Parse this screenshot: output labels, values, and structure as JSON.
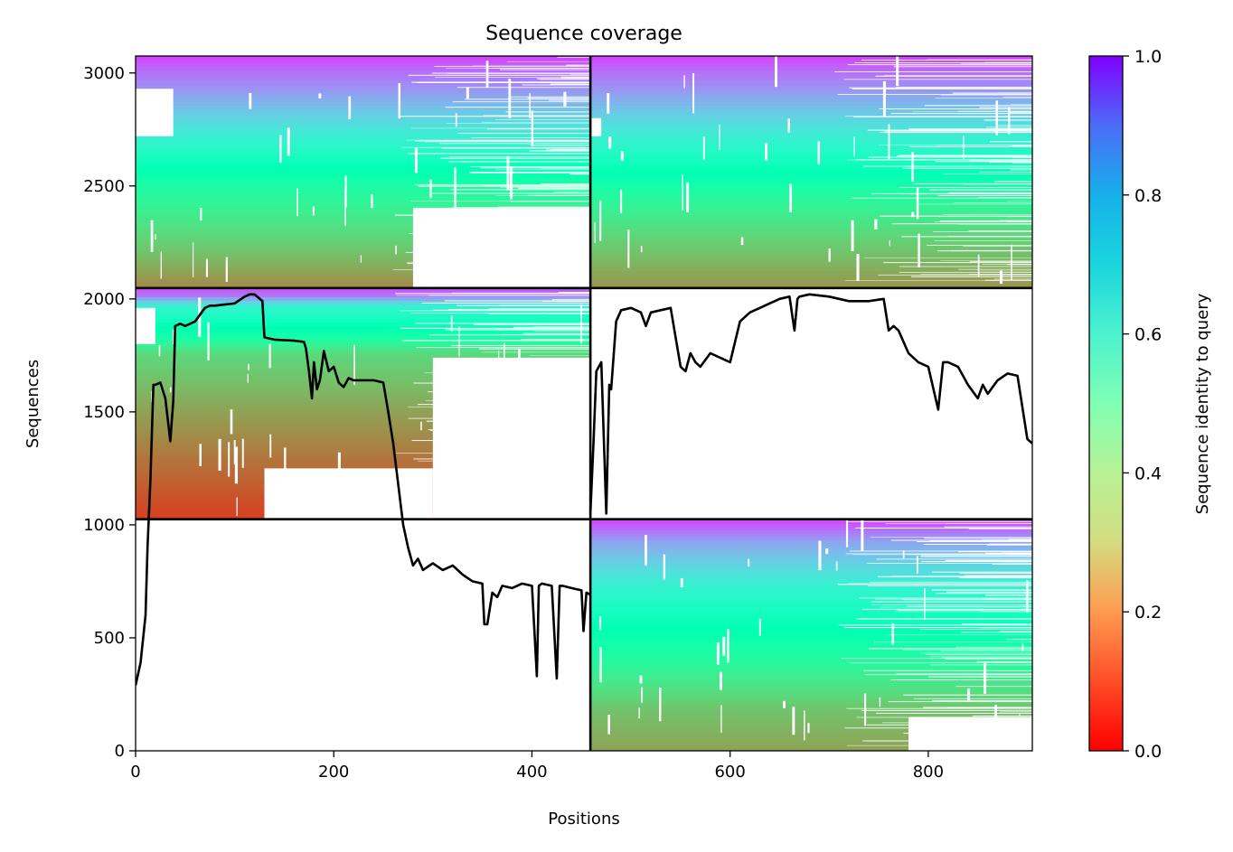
{
  "chart_data": {
    "type": "heatmap",
    "title": "Sequence coverage",
    "xlabel": "Positions",
    "ylabel": "Sequences",
    "xlim": [
      0,
      905
    ],
    "ylim": [
      0,
      3075
    ],
    "x_ticks": [
      0,
      200,
      400,
      600,
      800
    ],
    "y_ticks": [
      0,
      500,
      1000,
      1500,
      2000,
      2500,
      3000
    ],
    "grid": false,
    "colorbar": {
      "label": "Sequence identity to query",
      "range": [
        0,
        1
      ],
      "ticks": [
        "0.0",
        "0.2",
        "0.4",
        "0.6",
        "0.8",
        "1.0"
      ],
      "colormap": "rainbow_r"
    },
    "block_boundaries": {
      "x": [
        459
      ],
      "y": [
        1025,
        2048
      ]
    },
    "blocks": [
      {
        "chain": "row3-col1",
        "x": [
          0,
          459
        ],
        "y": [
          2048,
          3075
        ],
        "bands": [
          [
            2048,
            0.18
          ],
          [
            2240,
            0.3
          ],
          [
            2500,
            0.45
          ],
          [
            2720,
            0.62
          ],
          [
            2920,
            0.8
          ],
          [
            3030,
            0.88
          ]
        ]
      },
      {
        "chain": "row3-col2",
        "x": [
          459,
          905
        ],
        "y": [
          2048,
          3075
        ],
        "bands": [
          [
            2048,
            0.2
          ],
          [
            2250,
            0.3
          ],
          [
            2480,
            0.45
          ],
          [
            2720,
            0.62
          ],
          [
            2920,
            0.8
          ],
          [
            3030,
            0.88
          ]
        ]
      },
      {
        "chain": "row2-col1",
        "x": [
          0,
          459
        ],
        "y": [
          1025,
          2048
        ],
        "bands": [
          [
            1025,
            0.08
          ],
          [
            1280,
            0.15
          ],
          [
            1500,
            0.22
          ],
          [
            1750,
            0.32
          ],
          [
            1820,
            0.45
          ],
          [
            1960,
            0.6
          ],
          [
            2010,
            0.85
          ]
        ]
      },
      {
        "chain": "row1-col2",
        "x": [
          459,
          905
        ],
        "y": [
          0,
          1025
        ],
        "bands": [
          [
            0,
            0.22
          ],
          [
            180,
            0.28
          ],
          [
            380,
            0.42
          ],
          [
            720,
            0.6
          ],
          [
            920,
            0.78
          ],
          [
            990,
            0.88
          ]
        ]
      }
    ],
    "series": [
      {
        "type": "line",
        "color": "#000000",
        "x": [
          0,
          5,
          10,
          12,
          15,
          18,
          20,
          25,
          30,
          35,
          38,
          40,
          45,
          50,
          60,
          70,
          75,
          80,
          90,
          100,
          110,
          115,
          120,
          128,
          130,
          140,
          160,
          170,
          172,
          175,
          178,
          180,
          183,
          186,
          190,
          195,
          200,
          205,
          210,
          215,
          220,
          230,
          240,
          250,
          255,
          260,
          265,
          270,
          275,
          280,
          285,
          290,
          300,
          310,
          320,
          330,
          340,
          350,
          352,
          355,
          360,
          365,
          370,
          380,
          390,
          400,
          405,
          407,
          410,
          420,
          425,
          428,
          431,
          440,
          450,
          452,
          455,
          459
        ],
        "y": [
          290,
          390,
          600,
          900,
          1200,
          1620,
          1620,
          1630,
          1560,
          1370,
          1550,
          1880,
          1890,
          1880,
          1900,
          1960,
          1970,
          1970,
          1975,
          1980,
          2010,
          2020,
          2020,
          1990,
          1830,
          1820,
          1815,
          1810,
          1780,
          1680,
          1560,
          1720,
          1600,
          1640,
          1770,
          1680,
          1700,
          1630,
          1610,
          1650,
          1640,
          1640,
          1640,
          1630,
          1500,
          1360,
          1180,
          1000,
          900,
          820,
          850,
          800,
          830,
          800,
          820,
          780,
          750,
          740,
          560,
          560,
          700,
          680,
          730,
          720,
          740,
          730,
          330,
          730,
          740,
          730,
          320,
          730,
          730,
          720,
          710,
          530,
          700,
          690
        ]
      },
      {
        "type": "line",
        "color": "#000000",
        "x": [
          459,
          462,
          465,
          470,
          475,
          478,
          480,
          485,
          490,
          500,
          510,
          515,
          520,
          530,
          540,
          550,
          555,
          560,
          565,
          570,
          580,
          590,
          600,
          610,
          620,
          630,
          640,
          650,
          660,
          665,
          668,
          670,
          680,
          700,
          720,
          740,
          755,
          760,
          765,
          770,
          780,
          790,
          800,
          810,
          815,
          820,
          830,
          840,
          850,
          855,
          860,
          870,
          880,
          890,
          900,
          905
        ],
        "y": [
          1050,
          1350,
          1680,
          1720,
          1050,
          1620,
          1600,
          1900,
          1950,
          1960,
          1940,
          1880,
          1940,
          1950,
          1960,
          1700,
          1680,
          1760,
          1720,
          1700,
          1760,
          1740,
          1720,
          1900,
          1940,
          1960,
          1980,
          2000,
          2010,
          1860,
          2000,
          2010,
          2020,
          2010,
          1990,
          1990,
          2000,
          1860,
          1880,
          1860,
          1760,
          1720,
          1700,
          1510,
          1720,
          1720,
          1700,
          1620,
          1560,
          1620,
          1580,
          1640,
          1670,
          1660,
          1380,
          1360
        ]
      }
    ]
  }
}
